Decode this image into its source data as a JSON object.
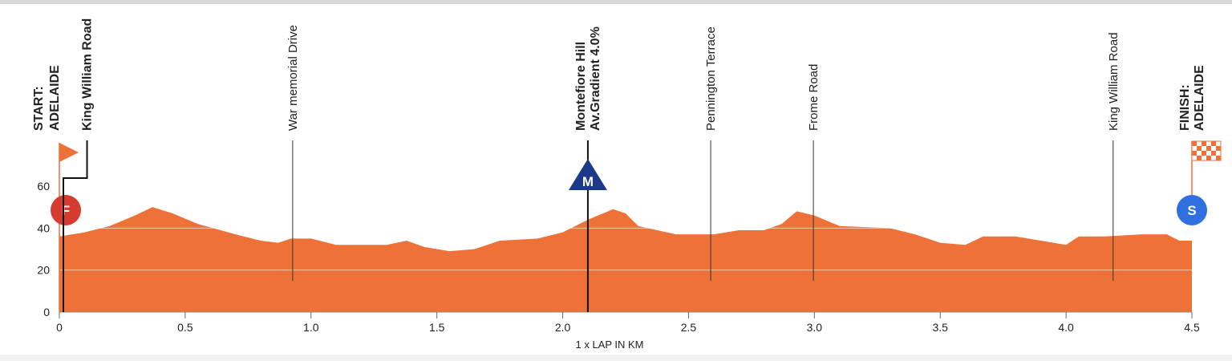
{
  "chart_data": {
    "type": "area",
    "x_label": "1 x LAP IN KM",
    "x": [
      0,
      0.1,
      0.2,
      0.3,
      0.37,
      0.45,
      0.55,
      0.7,
      0.8,
      0.87,
      0.92,
      1.0,
      1.1,
      1.3,
      1.38,
      1.45,
      1.55,
      1.65,
      1.75,
      1.9,
      2.0,
      2.1,
      2.2,
      2.25,
      2.3,
      2.45,
      2.6,
      2.7,
      2.8,
      2.87,
      2.93,
      3.0,
      3.1,
      3.3,
      3.4,
      3.5,
      3.6,
      3.67,
      3.8,
      3.9,
      4.0,
      4.05,
      4.15,
      4.3,
      4.4,
      4.45,
      4.5
    ],
    "values": [
      36,
      38,
      41,
      46,
      50,
      47,
      42,
      37,
      34,
      33,
      35,
      35,
      32,
      32,
      34,
      31,
      29,
      30,
      34,
      35,
      38,
      44,
      49,
      47,
      41,
      37,
      37,
      39,
      39,
      42,
      48,
      46,
      41,
      40,
      37,
      33,
      32,
      36,
      36,
      34,
      32,
      36,
      36,
      37,
      37,
      34,
      34
    ],
    "color": "#ee7237",
    "xlim": [
      0,
      4.5
    ],
    "xticks": [
      0,
      0.5,
      {
        "value": 1,
        "label": "1.0"
      },
      1.5,
      {
        "value": 2,
        "label": "2.0"
      },
      2.5,
      {
        "value": 3,
        "label": "3.0"
      },
      3.5,
      {
        "value": 4,
        "label": "4.0"
      },
      4.5
    ],
    "ylim": [
      0,
      60
    ],
    "yticks": [
      0,
      20,
      40,
      60
    ],
    "grid": true,
    "annotations": [
      {
        "lines": [
          "START:",
          "ADELAIDE"
        ],
        "x": 0,
        "bold": true,
        "flag": "start",
        "badge": "F",
        "badge_shape": "circle",
        "badge_color": "#d63b2f"
      },
      {
        "lines": [
          "King William Road"
        ],
        "x": 0.11,
        "bold": true
      },
      {
        "lines": [
          "War memorial Drive"
        ],
        "x": 0.927
      },
      {
        "lines": [
          "Montefiore Hill",
          "Av.Gradient 4.0%"
        ],
        "x": 2.1,
        "bold": true,
        "badge": "M",
        "badge_shape": "triangle",
        "badge_color": "#1d3a8a"
      },
      {
        "lines": [
          "Pennington Terrace"
        ],
        "x": 2.588
      },
      {
        "lines": [
          "Frome Road"
        ],
        "x": 2.996
      },
      {
        "lines": [
          "King William Road"
        ],
        "x": 4.187
      },
      {
        "lines": [
          "FINISH:",
          "ADELAIDE"
        ],
        "x": 4.5,
        "bold": true,
        "flag": "finish",
        "badge": "S",
        "badge_shape": "circle",
        "badge_color": "#2f6fe0"
      }
    ]
  }
}
